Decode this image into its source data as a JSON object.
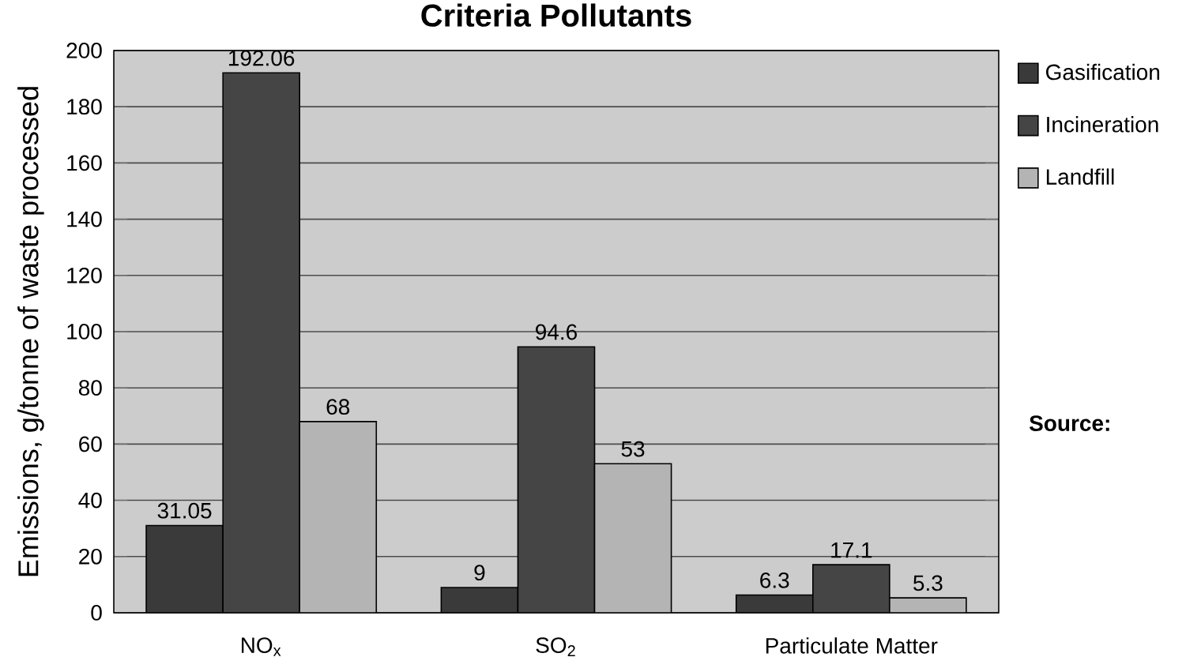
{
  "chart_data": {
    "type": "bar",
    "title": "Criteria Pollutants",
    "ylabel": "Emissions, g/tonne of waste processed",
    "categories": [
      "NO$_{x}$",
      "SO$_{2}$",
      "Particulate Matter"
    ],
    "series": [
      {
        "name": "Gasification",
        "color": "#3a3a3a",
        "values": [
          31.05,
          9,
          6.3
        ]
      },
      {
        "name": "Incineration",
        "color": "#454545",
        "values": [
          192.06,
          94.6,
          17.1
        ]
      },
      {
        "name": "Landfill",
        "color": "#b4b4b4",
        "values": [
          68,
          53,
          5.3
        ]
      }
    ],
    "ylim": [
      0,
      200
    ],
    "yticks": [
      0,
      20,
      40,
      60,
      80,
      100,
      120,
      140,
      160,
      180,
      200
    ],
    "grid": "y",
    "legend": "right",
    "data_labels": true,
    "annotations": [
      "Source:"
    ]
  }
}
